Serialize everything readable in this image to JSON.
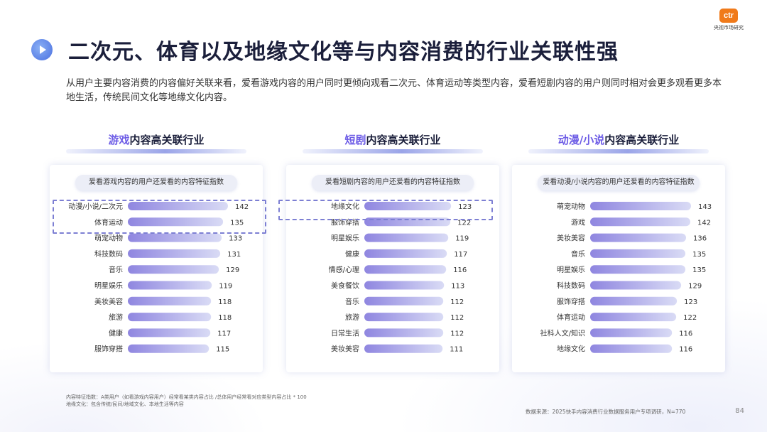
{
  "brand": {
    "logo_mark": "ctr",
    "logo_text": "央视市场研究",
    "accent_color": "#6d5ce6",
    "bar_color": "#8f86e0",
    "logo_color": "#f07a1a"
  },
  "title_icon": "play-circle-icon",
  "page_title": "二次元、体育以及地缘文化等与内容消费的行业关联性强",
  "intro": "从用户主要内容消费的内容偏好关联来看，爱看游戏内容的用户同时更倾向观看二次元、体育运动等类型内容，爱看短剧内容的用户则同时相对会更多观看更多本地生活，传统民间文化等地缘文化内容。",
  "panels": [
    {
      "title_highlight": "游戏",
      "title_rest": "内容高关联行业",
      "pill": "爱看游戏内容的用户还爱看的内容特征指数"
    },
    {
      "title_highlight": "短剧",
      "title_rest": "内容高关联行业",
      "pill": "爱看短剧内容的用户还爱看的内容特征指数"
    },
    {
      "title_highlight": "动漫/小说",
      "title_rest": "内容高关联行业",
      "pill": "爱看动漫/小说内容的用户还爱看的内容特征指数"
    }
  ],
  "chart_data": [
    {
      "type": "bar",
      "orientation": "horizontal",
      "title": "游戏内容高关联行业",
      "categories": [
        "动漫/小说/二次元",
        "体育运动",
        "萌宠动物",
        "科技数码",
        "音乐",
        "明星娱乐",
        "美妆美容",
        "旅游",
        "健康",
        "服饰穿搭"
      ],
      "values": [
        142,
        135,
        133,
        131,
        129,
        119,
        118,
        118,
        117,
        115
      ],
      "highlighted": [
        "动漫/小说/二次元",
        "体育运动"
      ]
    },
    {
      "type": "bar",
      "orientation": "horizontal",
      "title": "短剧内容高关联行业",
      "categories": [
        "地缘文化",
        "服饰穿搭",
        "明星娱乐",
        "健康",
        "情感/心理",
        "美食餐饮",
        "音乐",
        "旅游",
        "日常生活",
        "美妆美容"
      ],
      "values": [
        123,
        122,
        119,
        117,
        116,
        113,
        112,
        112,
        112,
        111
      ],
      "highlighted": [
        "地缘文化"
      ]
    },
    {
      "type": "bar",
      "orientation": "horizontal",
      "title": "动漫/小说内容高关联行业",
      "categories": [
        "萌宠动物",
        "游戏",
        "美妆美容",
        "音乐",
        "明星娱乐",
        "科技数码",
        "服饰穿搭",
        "体育运动",
        "社科人文/知识",
        "地缘文化"
      ],
      "values": [
        143,
        142,
        136,
        135,
        135,
        129,
        123,
        122,
        116,
        116
      ],
      "highlighted": []
    }
  ],
  "footnote": {
    "line1": "内容特征指数：A类用户（如看游戏内容用户）经常看某类内容占比 /总体用户经常看对应类型内容占比 * 100",
    "line2": "地缘文化：包含传统/民间/地域文化、本地生活等内容"
  },
  "source": "数据来源：2025快手内容消费行业数据服务用户专项调研，N=770",
  "page_number": "84"
}
